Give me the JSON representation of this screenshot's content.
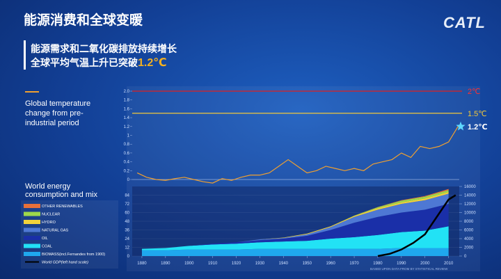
{
  "header": {
    "title": "能源消费和全球变暖",
    "logo": "CATL"
  },
  "subtitle": {
    "line1": "能源需求和二氧化碳排放持续增长",
    "line2": "全球平均气温上升已突破",
    "highlight": "1.2℃"
  },
  "chart_data": [
    {
      "type": "line",
      "title": "Global temperature change from pre-industrial period",
      "color": "#f0a030",
      "x": [
        1878,
        1882,
        1886,
        1890,
        1894,
        1898,
        1902,
        1906,
        1910,
        1914,
        1918,
        1922,
        1926,
        1930,
        1934,
        1938,
        1942,
        1946,
        1950,
        1954,
        1958,
        1962,
        1966,
        1970,
        1974,
        1978,
        1982,
        1986,
        1990,
        1994,
        1998,
        2002,
        2006,
        2010,
        2014
      ],
      "values": [
        0.15,
        0.05,
        0.0,
        -0.02,
        0.02,
        0.05,
        0.0,
        -0.05,
        -0.08,
        0.02,
        -0.02,
        0.05,
        0.1,
        0.1,
        0.15,
        0.3,
        0.45,
        0.3,
        0.15,
        0.2,
        0.3,
        0.25,
        0.2,
        0.25,
        0.2,
        0.35,
        0.4,
        0.45,
        0.6,
        0.5,
        0.75,
        0.7,
        0.75,
        0.85,
        1.2
      ],
      "xlim": [
        1875,
        2016
      ],
      "ylim": [
        -0.2,
        2.0
      ],
      "yticks": [
        0,
        0.2,
        0.4,
        0.6,
        0.8,
        1,
        1.2,
        1.4,
        1.6,
        1.8,
        {
          "value": 2,
          "label": "2.0"
        }
      ],
      "reference_lines": [
        {
          "value": 2,
          "label": "2℃",
          "color": "#e02020"
        },
        {
          "value": 1.5,
          "label": "1.5℃",
          "color": "#f2c83a"
        },
        {
          "value": 1.2,
          "label": "1.2℃",
          "color": "#ffffff"
        }
      ]
    },
    {
      "type": "stacked_area",
      "title": "World energy consumption and mix",
      "x": [
        1880,
        1890,
        1900,
        1910,
        1920,
        1930,
        1940,
        1950,
        1960,
        1970,
        1980,
        1990,
        2000,
        2010
      ],
      "xlim": [
        1875,
        2016
      ],
      "xticks": [
        1880,
        1890,
        1900,
        1910,
        1920,
        1930,
        1940,
        1950,
        1960,
        1970,
        1980,
        1990,
        2000,
        2010
      ],
      "ylim": [
        0,
        96
      ],
      "yticks": [
        0,
        12,
        24,
        36,
        48,
        60,
        72,
        84
      ],
      "y2lim": [
        0,
        16000
      ],
      "y2ticks": [
        0,
        2000,
        4000,
        6000,
        8000,
        10000,
        12000,
        14000,
        16000
      ],
      "series": [
        {
          "name": "BIOMASS(incl.Fernandes from 1900)",
          "color": "#1fa8ee",
          "values": [
            8,
            8,
            9,
            9,
            9,
            10,
            10,
            10,
            10,
            10,
            10,
            11,
            11,
            11
          ]
        },
        {
          "name": "COAL",
          "color": "#22e2f5",
          "values": [
            2,
            3,
            5,
            7,
            8,
            9,
            10,
            11,
            14,
            16,
            19,
            22,
            24,
            30
          ]
        },
        {
          "name": "OIL",
          "color": "#1a2fa8",
          "values": [
            0,
            0,
            0,
            1,
            2,
            3,
            4,
            7,
            12,
            20,
            25,
            27,
            29,
            31
          ]
        },
        {
          "name": "NATURAL GAS",
          "color": "#4e78d4",
          "values": [
            0,
            0,
            0,
            0,
            0,
            1,
            1,
            2,
            4,
            8,
            10,
            12,
            13,
            14
          ]
        },
        {
          "name": "HYDRO",
          "color": "#f2d23a",
          "values": [
            0,
            0,
            0,
            0,
            0,
            0,
            0.5,
            1,
            1,
            1.5,
            2,
            2,
            2.5,
            2.5
          ]
        },
        {
          "name": "NUCLEAR",
          "color": "#9ed84a",
          "values": [
            0,
            0,
            0,
            0,
            0,
            0,
            0,
            0,
            0,
            0.3,
            1.5,
            2.5,
            2.5,
            2.5
          ]
        },
        {
          "name": "OTHER RENEWABLES",
          "color": "#e8703a",
          "values": [
            0,
            0,
            0,
            0,
            0,
            0,
            0,
            0,
            0,
            0,
            0.2,
            0.5,
            0.8,
            1.5
          ]
        },
        {
          "name": "World GDP(left hand scale)",
          "color": "#000000",
          "axis": "y2",
          "line": true,
          "x": [
            1980,
            1985,
            1990,
            1995,
            2000,
            2005,
            2010,
            2013
          ],
          "values": [
            0,
            500,
            1500,
            3000,
            5000,
            9000,
            13000,
            14000
          ]
        }
      ],
      "note": "BASED UPON DATA FROM BY STATISTICAL REVIEW"
    }
  ]
}
